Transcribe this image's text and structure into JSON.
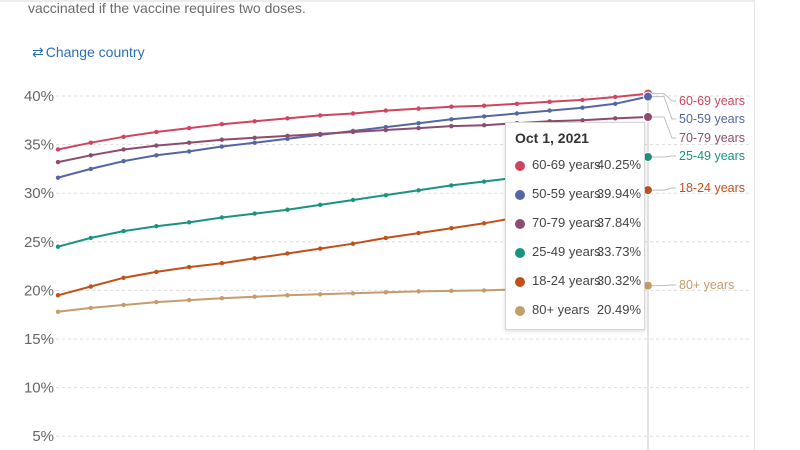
{
  "subtitle": "vaccinated if the vaccine requires two doses.",
  "change_country": {
    "icon": "swap-arrows-icon",
    "label": "Change country"
  },
  "colors": {
    "60-69 years": "#d1445f",
    "50-59 years": "#5566a5",
    "70-79 years": "#8d4c6e",
    "25-49 years": "#1a9381",
    "18-24 years": "#c1501b",
    "80+ years": "#c59c6c"
  },
  "chart_data": {
    "type": "line",
    "title": "",
    "xlabel": "",
    "ylabel": "",
    "ylim": [
      0,
      42
    ],
    "y_ticks": [
      "40%",
      "35%",
      "30%",
      "25%",
      "20%",
      "15%",
      "10%",
      "5%"
    ],
    "y_tick_values": [
      40,
      35,
      30,
      25,
      20,
      15,
      10,
      5
    ],
    "grid": true,
    "x_points": 19,
    "series": [
      {
        "name": "60-69 years",
        "values": [
          34.5,
          35.2,
          35.8,
          36.3,
          36.7,
          37.1,
          37.4,
          37.7,
          38.0,
          38.2,
          38.5,
          38.7,
          38.9,
          39.0,
          39.2,
          39.4,
          39.6,
          39.9,
          40.25
        ]
      },
      {
        "name": "50-59 years",
        "values": [
          31.6,
          32.5,
          33.3,
          33.9,
          34.3,
          34.8,
          35.2,
          35.6,
          36.0,
          36.4,
          36.8,
          37.2,
          37.6,
          37.9,
          38.2,
          38.5,
          38.8,
          39.2,
          39.94
        ]
      },
      {
        "name": "70-79 years",
        "values": [
          33.2,
          33.9,
          34.5,
          34.9,
          35.2,
          35.5,
          35.7,
          35.9,
          36.1,
          36.3,
          36.5,
          36.7,
          36.9,
          37.0,
          37.2,
          37.4,
          37.5,
          37.7,
          37.84
        ]
      },
      {
        "name": "25-49 years",
        "values": [
          24.5,
          25.4,
          26.1,
          26.6,
          27.0,
          27.5,
          27.9,
          28.3,
          28.8,
          29.3,
          29.8,
          30.3,
          30.8,
          31.2,
          31.6,
          32.0,
          32.5,
          33.1,
          33.73
        ]
      },
      {
        "name": "18-24 years",
        "values": [
          19.5,
          20.4,
          21.3,
          21.9,
          22.4,
          22.8,
          23.3,
          23.8,
          24.3,
          24.8,
          25.4,
          25.9,
          26.4,
          26.9,
          27.5,
          28.1,
          28.7,
          29.5,
          30.32
        ]
      },
      {
        "name": "80+ years",
        "values": [
          17.8,
          18.2,
          18.5,
          18.8,
          19.0,
          19.2,
          19.35,
          19.5,
          19.6,
          19.7,
          19.8,
          19.9,
          19.95,
          20.0,
          20.1,
          20.2,
          20.3,
          20.4,
          20.49
        ]
      }
    ],
    "end_labels": [
      "60-69 years",
      "50-59 years",
      "70-79 years",
      "25-49 years",
      "18-24 years",
      "80+ years"
    ]
  },
  "tooltip": {
    "date": "Oct 1, 2021",
    "rows": [
      {
        "name": "60-69 years",
        "value": "40.25%"
      },
      {
        "name": "50-59 years",
        "value": "39.94%"
      },
      {
        "name": "70-79 years",
        "value": "37.84%"
      },
      {
        "name": "25-49 years",
        "value": "33.73%"
      },
      {
        "name": "18-24 years",
        "value": "30.32%"
      },
      {
        "name": "80+ years",
        "value": "20.49%"
      }
    ]
  }
}
